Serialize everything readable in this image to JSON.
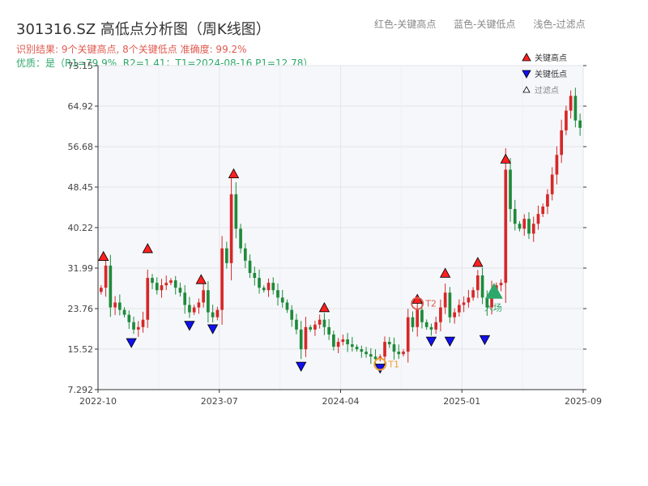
{
  "header": {
    "title": "301316.SZ 高低点分析图（周K线图）",
    "legend_high": "红色-关键高点",
    "legend_low": "蓝色-关键低点",
    "legend_filtered": "浅色-过滤点",
    "summary": "识别结果: 9个关键高点, 8个关键低点  准确度: 99.2%",
    "quality": "优质：是（R1=79.9%, R2=1.41；T1=2024-08-16 P1=12.78）"
  },
  "colors": {
    "up": "#d62728",
    "down": "#1f8a3b",
    "high_marker": "#ff2020",
    "low_marker": "#1010ee",
    "entry": "#2ea86a",
    "t1": "#f0a030",
    "t2": "#e05a4f",
    "plot_bg": "#f5f7fa"
  },
  "chart_data": {
    "type": "candlestick",
    "ylim": [
      7.292,
      73.15
    ],
    "y_ticks": [
      "7.292",
      "15.52",
      "23.76",
      "31.99",
      "40.22",
      "48.45",
      "56.68",
      "64.92",
      "73.15"
    ],
    "x_ticks": [
      "2022-10",
      "2023-07",
      "2024-04",
      "2025-01",
      "2025-09"
    ],
    "legend": {
      "high": "关键高点",
      "low": "关键低点",
      "filtered": "过滤点"
    },
    "annotations": {
      "t1": "T1",
      "t2": "T2",
      "entry": "入场"
    },
    "key_highs": [
      {
        "t": 0.5,
        "value": 33.2
      },
      {
        "t": 10,
        "value": 34.8
      },
      {
        "t": 21.5,
        "value": 28.5
      },
      {
        "t": 28.5,
        "value": 50.0
      },
      {
        "t": 48,
        "value": 22.8
      },
      {
        "t": 68,
        "value": 24.5
      },
      {
        "t": 74,
        "value": 29.8
      },
      {
        "t": 81,
        "value": 32.0
      },
      {
        "t": 87,
        "value": 53.0
      }
    ],
    "key_lows": [
      {
        "t": 6.5,
        "value": 18.0
      },
      {
        "t": 19,
        "value": 21.5
      },
      {
        "t": 24,
        "value": 20.8
      },
      {
        "t": 43,
        "value": 13.2
      },
      {
        "t": 60,
        "value": 12.8
      },
      {
        "t": 71,
        "value": 18.3
      },
      {
        "t": 75,
        "value": 18.3
      },
      {
        "t": 82.5,
        "value": 18.6
      }
    ],
    "t1_point": {
      "t": 60,
      "value": 12.8
    },
    "t2_point": {
      "t": 68,
      "value": 24.8
    },
    "entry_point": {
      "t": 84.5,
      "value": 27.0
    },
    "closes": [
      28.0,
      32.5,
      24.0,
      25.0,
      23.5,
      22.5,
      21.0,
      19.5,
      20.0,
      21.5,
      30.0,
      29.0,
      27.5,
      28.5,
      29.0,
      29.5,
      28.0,
      27.0,
      24.5,
      23.0,
      24.0,
      25.0,
      27.5,
      23.0,
      22.0,
      23.5,
      36.0,
      33.0,
      47.0,
      40.0,
      36.0,
      33.5,
      31.0,
      30.0,
      28.0,
      27.5,
      29.0,
      27.5,
      26.0,
      25.0,
      23.5,
      21.5,
      19.5,
      15.5,
      20.0,
      19.5,
      20.5,
      21.5,
      20.0,
      18.5,
      16.0,
      17.0,
      17.5,
      16.5,
      16.0,
      15.5,
      15.0,
      14.5,
      14.0,
      13.5,
      14.0,
      17.0,
      16.5,
      15.0,
      14.5,
      15.0,
      22.0,
      20.0,
      23.5,
      21.0,
      20.0,
      19.5,
      21.0,
      24.0,
      27.0,
      22.0,
      23.0,
      24.5,
      25.0,
      26.0,
      27.5,
      30.5,
      26.0,
      24.0,
      27.5,
      28.5,
      29.0,
      52.0,
      44.0,
      41.0,
      40.0,
      42.0,
      39.0,
      41.0,
      43.0,
      44.5,
      47.0,
      51.0,
      55.0,
      60.0,
      64.0,
      67.0,
      62.0,
      60.5
    ]
  }
}
